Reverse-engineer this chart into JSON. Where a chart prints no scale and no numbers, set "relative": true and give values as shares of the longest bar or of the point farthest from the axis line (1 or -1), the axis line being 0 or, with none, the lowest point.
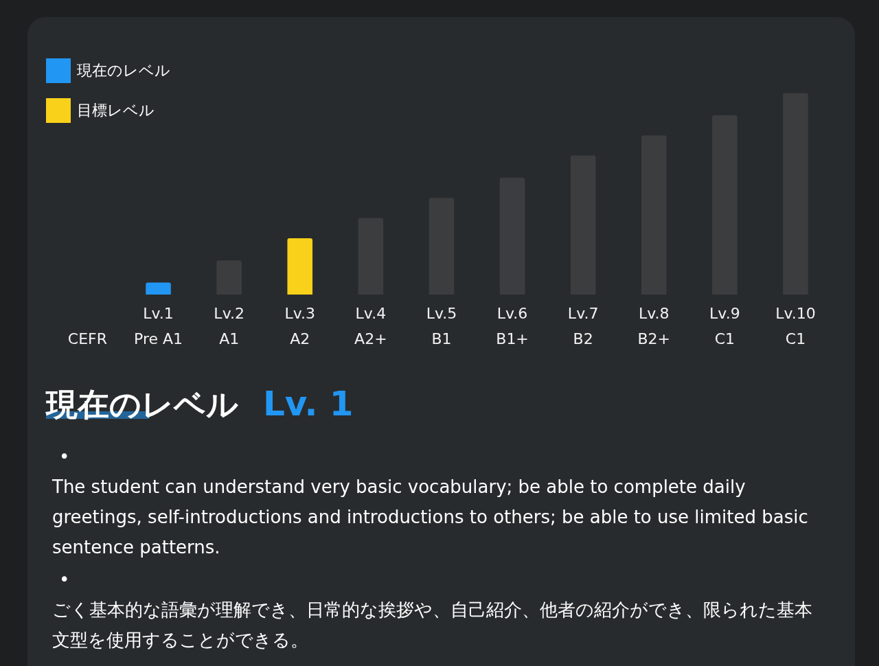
{
  "chart_data": {
    "type": "bar",
    "relative": true,
    "stacked": true,
    "legend": "top left",
    "xlabel": "CEFR",
    "categories": [
      "Lv.1\nPre A1",
      "Lv.2\nA1",
      "Lv.3\nA2",
      "Lv.4\nA2+",
      "Lv.5\nB1",
      "Lv.6\nB1+",
      "Lv.7\nB2",
      "Lv.8\nB2+",
      "Lv.9\nC1",
      "Lv.10\nC1"
    ],
    "series": [
      {
        "name": "現在のレベル",
        "color": "#2196f3",
        "values": [
          0.06,
          null,
          null,
          null,
          null,
          null,
          null,
          null,
          null,
          null
        ]
      },
      {
        "name": "目標レベル",
        "color": "#f9d11a",
        "values": [
          null,
          null,
          0.28,
          null,
          null,
          null,
          null,
          null,
          null,
          null
        ]
      },
      {
        "color": "#3c3d3e",
        "values": [
          null,
          0.17,
          null,
          0.38,
          0.48,
          0.58,
          0.69,
          0.79,
          0.89,
          1
        ]
      }
    ],
    "annotations": [
      "現在のレベル",
      "Lv. 1",
      "•",
      "The student can understand very basic vocabulary; be able to complete daily greetings, self-introductions and introductions to others; be able to use limited basic sentence patterns.",
      "•",
      "ごく基本的な語彙が理解でき、日常的な挨拶や、自己紹介、他者の紹介ができ、限られた基本文型を使用することができる。"
    ]
  }
}
